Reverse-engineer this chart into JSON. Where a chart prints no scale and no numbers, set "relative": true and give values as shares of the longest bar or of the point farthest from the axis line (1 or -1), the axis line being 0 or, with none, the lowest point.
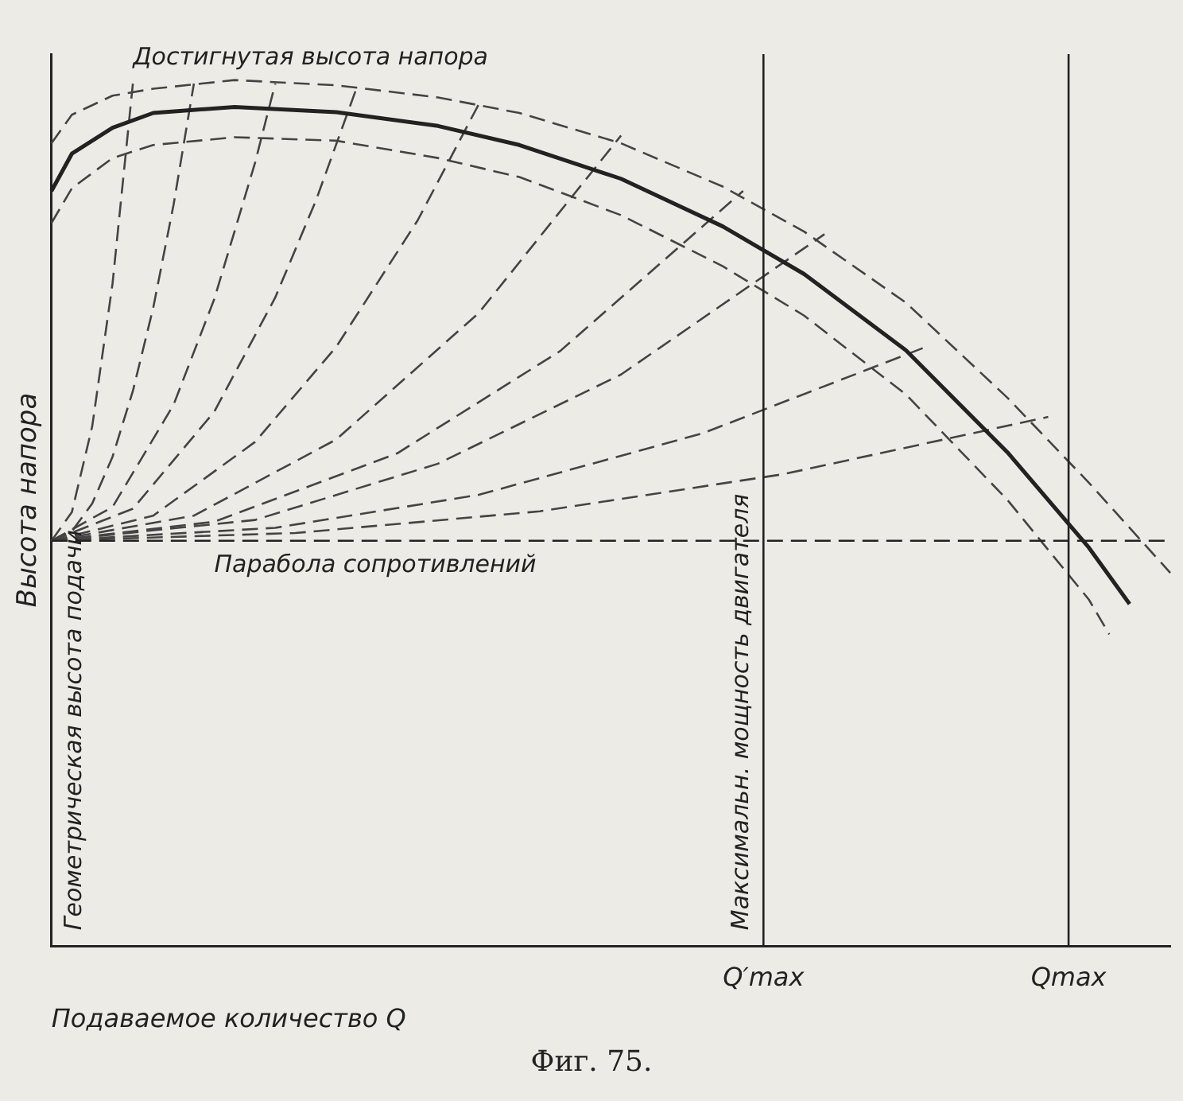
{
  "chart_data": {
    "type": "line",
    "relative": true,
    "xlabel": "Подаваемое количество Q",
    "ylabel": "Высота напора",
    "categories": [
      null,
      null,
      null,
      null,
      null,
      null,
      null,
      null,
      null,
      null,
      null,
      null,
      null,
      null,
      null,
      null,
      null,
      null,
      null,
      null,
      null,
      null,
      null,
      null,
      null,
      null,
      null,
      null,
      null,
      null,
      null,
      null,
      null,
      null,
      null,
      "Q′max",
      null,
      null,
      null,
      null,
      null,
      null,
      null,
      null,
      null,
      null,
      null,
      null,
      null,
      null,
      "Qmax",
      null,
      null,
      null,
      null,
      null
    ],
    "grid": false,
    "legend": false,
    "marker": "none",
    "tick_labels": "x",
    "ref_lines": [
      {
        "axis": "y",
        "value": 0.468,
        "line_style": "dashed"
      },
      {
        "axis": "x",
        "value": "Q′max",
        "label": "Максимальн. мощность двигателя"
      },
      {
        "axis": "x",
        "value": "Qmax"
      }
    ],
    "annotations": [
      "Достигнутая высота напора",
      "Парабола сопротивлений",
      "Геометрическая высота подачи",
      "Фиг. 75."
    ],
    "series": [
      {
        "color": "#222222",
        "line_style": "solid",
        "values": [
          0.872,
          0.915,
          null,
          0.945,
          null,
          0.962,
          null,
          null,
          null,
          0.969,
          null,
          null,
          null,
          null,
          0.963,
          null,
          null,
          null,
          null,
          0.947,
          null,
          null,
          null,
          0.925,
          null,
          null,
          null,
          null,
          0.886,
          null,
          null,
          null,
          null,
          0.831,
          null,
          null,
          null,
          0.776,
          null,
          null,
          null,
          null,
          0.688,
          null,
          null,
          null,
          null,
          0.57,
          null,
          null,
          null,
          0.46,
          null,
          0.395,
          null,
          null
        ]
      },
      {
        "color": "#444444",
        "line_style": "dashed",
        "values": [
          0.927,
          0.96,
          null,
          0.982,
          null,
          0.99,
          null,
          null,
          null,
          1.0,
          null,
          null,
          null,
          null,
          0.994,
          null,
          null,
          null,
          null,
          0.98,
          null,
          null,
          null,
          0.962,
          null,
          null,
          null,
          null,
          0.927,
          null,
          null,
          null,
          null,
          0.877,
          null,
          null,
          null,
          0.825,
          null,
          null,
          null,
          null,
          0.743,
          null,
          null,
          null,
          null,
          0.633,
          null,
          null,
          null,
          0.535,
          null,
          null,
          null,
          0.431
        ]
      },
      {
        "color": "#444444",
        "line_style": "dashed",
        "values": [
          0.835,
          0.875,
          null,
          0.91,
          null,
          0.925,
          null,
          null,
          null,
          0.934,
          null,
          null,
          null,
          null,
          0.93,
          null,
          null,
          null,
          null,
          0.91,
          null,
          null,
          null,
          0.888,
          null,
          null,
          null,
          null,
          0.844,
          null,
          null,
          null,
          null,
          0.785,
          null,
          null,
          null,
          0.728,
          null,
          null,
          null,
          null,
          0.637,
          null,
          null,
          null,
          null,
          0.515,
          null,
          null,
          null,
          0.4,
          0.36,
          null,
          null,
          null
        ]
      },
      {
        "color": "#444444",
        "line_style": "dashed",
        "values": [
          0.468,
          0.501,
          0.6,
          0.765,
          0.996,
          null,
          null,
          null,
          null,
          null,
          null,
          null,
          null,
          null,
          null,
          null,
          null,
          null,
          null,
          null,
          null,
          null,
          null,
          null,
          null,
          null,
          null,
          null,
          null,
          null,
          null,
          null,
          null,
          null,
          null,
          null,
          null,
          null,
          null,
          null,
          null,
          null,
          null,
          null,
          null,
          null,
          null,
          null,
          null,
          null,
          null,
          null,
          null,
          null,
          null,
          null
        ]
      },
      {
        "color": "#444444",
        "line_style": "dashed",
        "values": [
          0.468,
          0.479,
          0.511,
          0.565,
          0.641,
          0.737,
          0.856,
          0.996,
          null,
          null,
          null,
          null,
          null,
          null,
          null,
          null,
          null,
          null,
          null,
          null,
          null,
          null,
          null,
          null,
          null,
          null,
          null,
          null,
          null,
          null,
          null,
          null,
          null,
          null,
          null,
          null,
          null,
          null,
          null,
          null,
          null,
          null,
          null,
          null,
          null,
          null,
          null,
          null,
          null,
          null,
          null,
          null,
          null,
          null,
          null,
          null
        ]
      },
      {
        "color": "#444444",
        "line_style": "dashed",
        "values": [
          0.468,
          null,
          null,
          0.507,
          null,
          null,
          0.625,
          null,
          0.747,
          null,
          0.904,
          0.996,
          null,
          null,
          null,
          null,
          null,
          null,
          null,
          null,
          null,
          null,
          null,
          null,
          null,
          null,
          null,
          null,
          null,
          null,
          null,
          null,
          null,
          null,
          null,
          null,
          null,
          null,
          null,
          null,
          null,
          null,
          null,
          null,
          null,
          null,
          null,
          null,
          null,
          null,
          null,
          null,
          null,
          null,
          null,
          null
        ]
      },
      {
        "color": "#444444",
        "line_style": "dashed",
        "values": [
          0.468,
          null,
          null,
          null,
          0.505,
          null,
          null,
          null,
          0.617,
          null,
          null,
          0.749,
          null,
          0.861,
          null,
          0.991,
          null,
          null,
          null,
          null,
          null,
          null,
          null,
          null,
          null,
          null,
          null,
          null,
          null,
          null,
          null,
          null,
          null,
          null,
          null,
          null,
          null,
          null,
          null,
          null,
          null,
          null,
          null,
          null,
          null,
          null,
          null,
          null,
          null,
          null,
          null,
          null,
          null,
          null,
          null,
          null
        ]
      },
      {
        "color": "#444444",
        "line_style": "dashed",
        "values": [
          0.468,
          null,
          null,
          null,
          null,
          0.497,
          null,
          null,
          null,
          null,
          0.582,
          null,
          null,
          null,
          0.692,
          null,
          null,
          null,
          0.838,
          null,
          null,
          0.972,
          null,
          null,
          null,
          null,
          null,
          null,
          null,
          null,
          null,
          null,
          null,
          null,
          null,
          null,
          null,
          null,
          null,
          null,
          null,
          null,
          null,
          null,
          null,
          null,
          null,
          null,
          null,
          null,
          null,
          null,
          null,
          null,
          null,
          null
        ]
      },
      {
        "color": "#444444",
        "line_style": "dashed",
        "values": [
          0.468,
          null,
          null,
          null,
          null,
          null,
          null,
          0.497,
          null,
          null,
          null,
          null,
          null,
          null,
          0.585,
          null,
          null,
          null,
          null,
          null,
          null,
          0.731,
          null,
          null,
          null,
          null,
          null,
          null,
          0.936,
          null,
          null,
          null,
          null,
          null,
          null,
          null,
          null,
          null,
          null,
          null,
          null,
          null,
          null,
          null,
          null,
          null,
          null,
          null,
          null,
          null,
          null,
          null,
          null,
          null,
          null,
          null
        ]
      },
      {
        "color": "#444444",
        "line_style": "dashed",
        "values": [
          0.468,
          null,
          null,
          null,
          null,
          null,
          null,
          null,
          0.49,
          null,
          null,
          null,
          null,
          null,
          null,
          null,
          null,
          0.569,
          null,
          null,
          null,
          null,
          null,
          null,
          null,
          0.687,
          null,
          null,
          null,
          null,
          null,
          null,
          null,
          null,
          0.872,
          null,
          null,
          null,
          null,
          null,
          null,
          null,
          null,
          null,
          null,
          null,
          null,
          null,
          null,
          null,
          null,
          null,
          null,
          null,
          null,
          null
        ]
      },
      {
        "color": "#444444",
        "line_style": "dashed",
        "values": [
          0.468,
          null,
          null,
          null,
          null,
          null,
          null,
          null,
          null,
          null,
          0.492,
          null,
          null,
          null,
          null,
          null,
          null,
          null,
          null,
          0.557,
          null,
          null,
          null,
          null,
          null,
          null,
          null,
          null,
          0.66,
          null,
          null,
          null,
          null,
          null,
          null,
          null,
          null,
          null,
          0.822,
          null,
          null,
          null,
          null,
          null,
          null,
          null,
          null,
          null,
          null,
          null,
          null,
          null,
          null,
          null,
          null,
          null
        ]
      },
      {
        "color": "#444444",
        "line_style": "dashed",
        "values": [
          0.468,
          null,
          null,
          null,
          null,
          null,
          null,
          null,
          null,
          null,
          null,
          0.483,
          null,
          null,
          null,
          null,
          null,
          null,
          null,
          null,
          null,
          0.521,
          null,
          null,
          null,
          null,
          null,
          null,
          null,
          null,
          null,
          null,
          0.592,
          null,
          null,
          null,
          null,
          null,
          null,
          null,
          null,
          null,
          null,
          0.692,
          null,
          null,
          null,
          null,
          null,
          null,
          null,
          null,
          null,
          null,
          null,
          null
        ]
      },
      {
        "color": "#444444",
        "line_style": "dashed",
        "values": [
          0.468,
          null,
          null,
          null,
          null,
          null,
          null,
          null,
          null,
          null,
          null,
          null,
          0.477,
          null,
          null,
          null,
          null,
          null,
          null,
          null,
          null,
          null,
          null,
          null,
          0.502,
          null,
          null,
          null,
          null,
          null,
          null,
          null,
          null,
          null,
          null,
          null,
          0.545,
          null,
          null,
          null,
          null,
          null,
          null,
          null,
          null,
          null,
          null,
          null,
          null,
          0.611,
          null,
          null,
          null,
          null,
          null,
          null
        ]
      }
    ]
  }
}
